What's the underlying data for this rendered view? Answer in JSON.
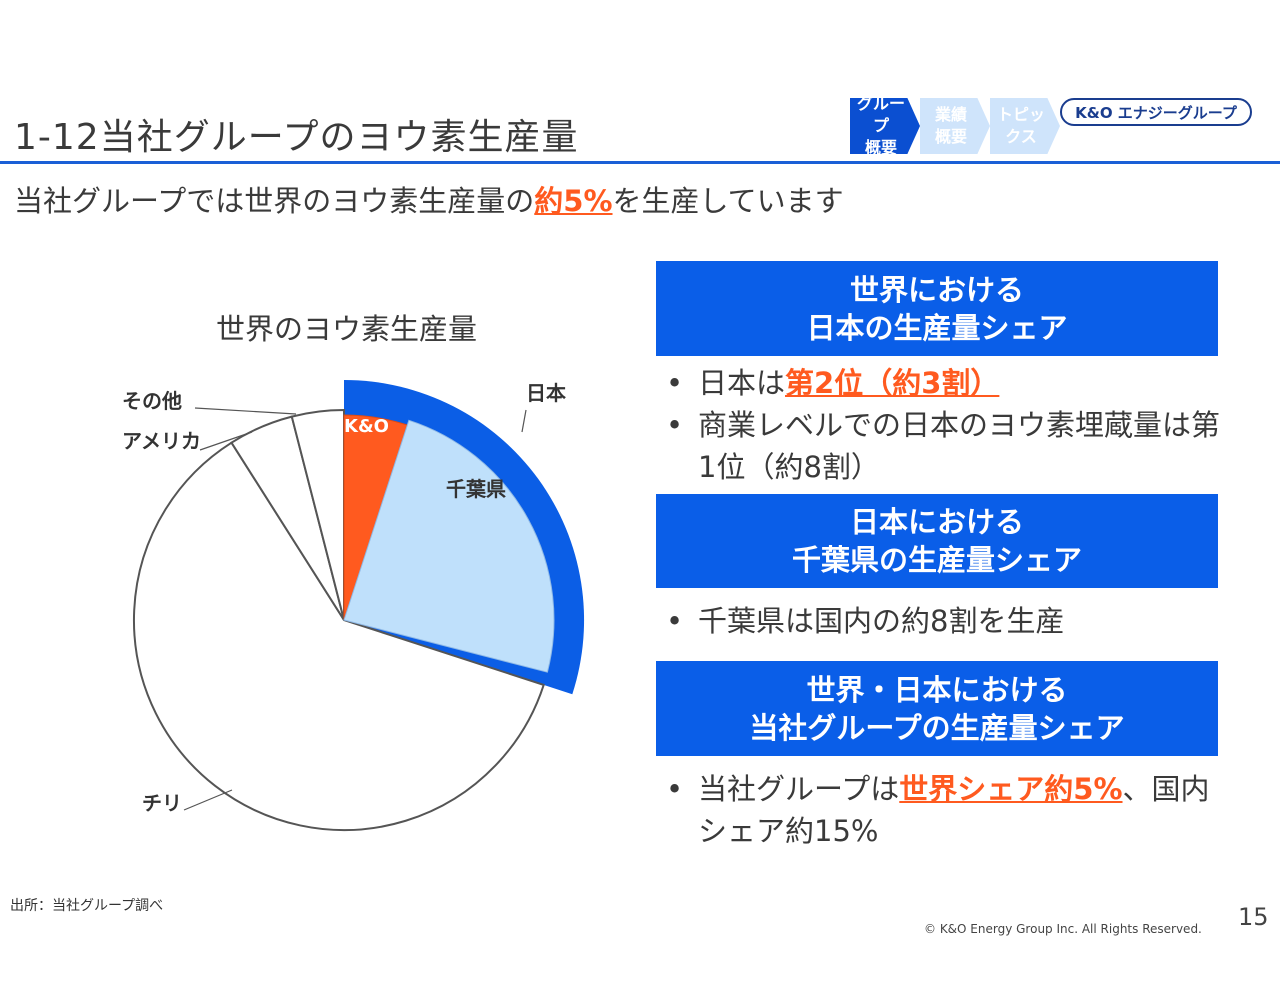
{
  "page": {
    "title": "1-12当社グループのヨウ素生産量",
    "subtitle_pre": "当社グループでは世界のヨウ素生産量の",
    "subtitle_highlight": "約5%",
    "subtitle_post": "を生産しています",
    "page_number": "15",
    "source": "出所：当社グループ調べ",
    "copyright": "© K&O Energy Group Inc. All Rights Reserved."
  },
  "nav": {
    "tabs": [
      {
        "label": "グループ\n概要",
        "active": true
      },
      {
        "label": "業績\n概要",
        "active": false
      },
      {
        "label": "トピッ\nクス",
        "active": false
      }
    ],
    "brand": "K&O エナジーグループ"
  },
  "colors": {
    "accent": "#0a5ee8",
    "highlight": "#ff5a1f",
    "chiba": "#bfe0fb",
    "japan": "#0b5ee6"
  },
  "chart_data": {
    "type": "pie",
    "title": "世界のヨウ素生産量",
    "slices": [
      {
        "label": "日本",
        "value": 30,
        "color": "#0b5ee6"
      },
      {
        "label": "チリ",
        "value": 61,
        "color": "#ffffff"
      },
      {
        "label": "アメリカ",
        "value": 5,
        "color": "#ffffff"
      },
      {
        "label": "その他",
        "value": 4,
        "color": "#ffffff"
      }
    ],
    "inner_slices": [
      {
        "label": "千葉県",
        "value": 24,
        "color": "#bfe0fb"
      },
      {
        "label": "K&O",
        "value": 5,
        "color": "#ff5a1f"
      }
    ]
  },
  "panels": [
    {
      "line1": "世界における",
      "line2": "日本の生産量シェア",
      "bullets": [
        {
          "pre": "日本は",
          "highlight": "第2位（約3割）",
          "post": ""
        },
        {
          "pre": "商業レベルでの日本のヨウ素埋蔵量は第1位（約8割）",
          "highlight": "",
          "post": ""
        }
      ]
    },
    {
      "line1": "日本における",
      "line2": "千葉県の生産量シェア",
      "bullets": [
        {
          "pre": "千葉県は国内の約8割を生産",
          "highlight": "",
          "post": ""
        }
      ]
    },
    {
      "line1": "世界・日本における",
      "line2": "当社グループの生産量シェア",
      "bullets": [
        {
          "pre": "当社グループは",
          "highlight": "世界シェア約5%",
          "post": "、国内シェア約15%"
        }
      ]
    }
  ]
}
